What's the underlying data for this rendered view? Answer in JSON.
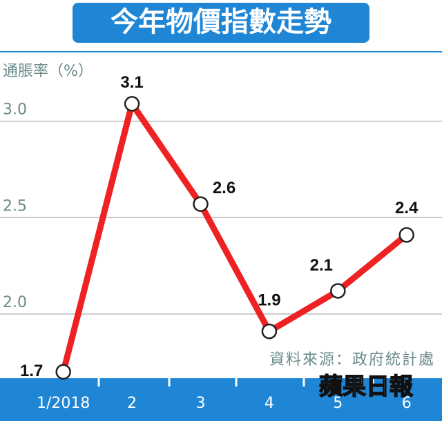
{
  "chart_data": {
    "type": "line",
    "title": "今年物價指數走勢",
    "y_axis_label": "通脹率（%）",
    "source": "資料來源：政府統計處",
    "publisher": "蘋果日報",
    "categories": [
      "1/2018",
      "2",
      "3",
      "4",
      "5",
      "6"
    ],
    "series": [
      {
        "name": "通脹率",
        "color": "#ee2222",
        "values": [
          1.7,
          3.09,
          2.57,
          1.91,
          2.12,
          2.41
        ],
        "value_labels": [
          "1.7",
          "3.1",
          "2.6",
          "1.9",
          "2.1",
          "2.4"
        ]
      }
    ],
    "ylim": [
      1.667,
      3.36
    ],
    "yticks": [
      {
        "value": 2,
        "label": "2.0"
      },
      {
        "value": 2.5,
        "label": "2.5"
      },
      {
        "value": 3,
        "label": "3.0"
      }
    ],
    "grid": true
  }
}
